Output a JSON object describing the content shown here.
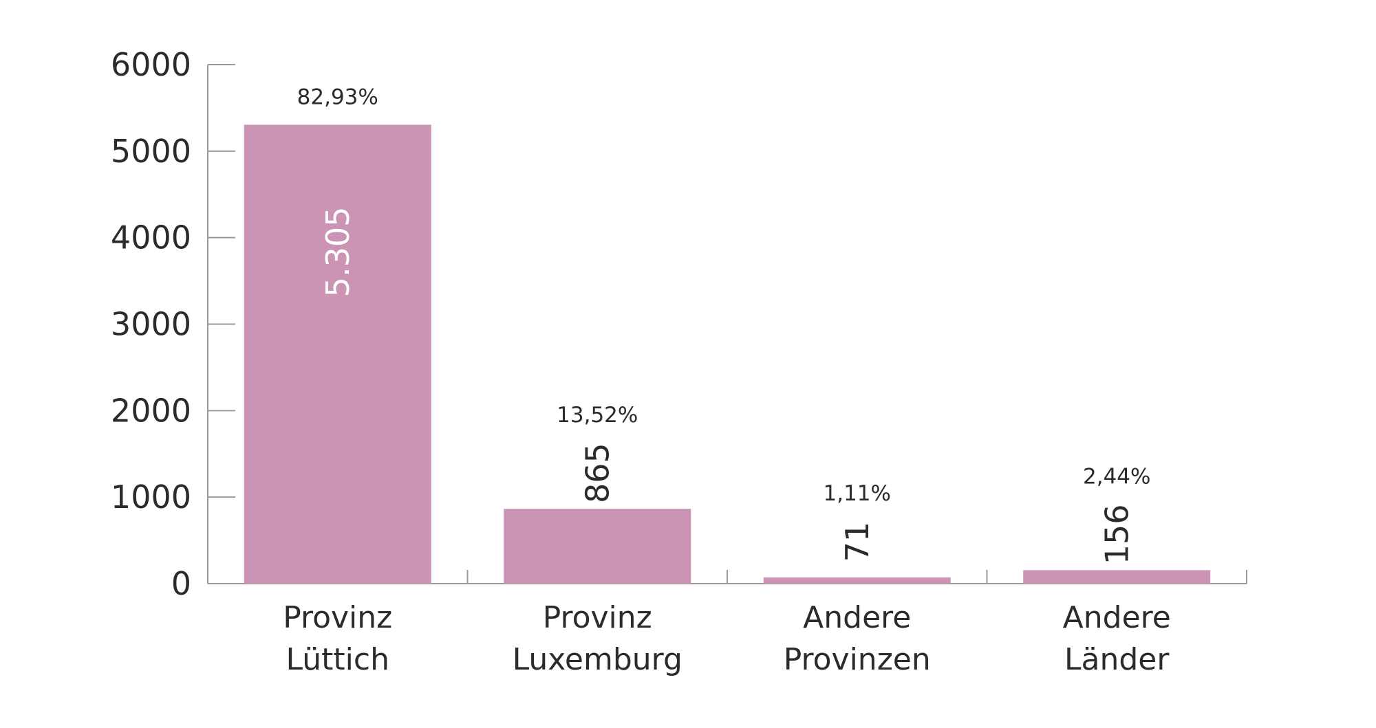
{
  "chart_data": {
    "type": "bar",
    "title": "",
    "xlabel": "",
    "ylabel": "",
    "ylim": [
      0,
      6000
    ],
    "yticks": [
      0,
      1000,
      2000,
      3000,
      4000,
      5000,
      6000
    ],
    "grid": false,
    "categories": [
      [
        "Provinz",
        "Lüttich"
      ],
      [
        "Provinz",
        "Luxemburg"
      ],
      [
        "Andere",
        "Provinzen"
      ],
      [
        "Andere",
        "Länder"
      ]
    ],
    "values": [
      5305,
      865,
      71,
      156
    ],
    "value_labels": [
      "5.305",
      "865",
      "71",
      "156"
    ],
    "percent_labels": [
      "82,93%",
      "13,52%",
      "1,11%",
      "2,44%"
    ],
    "colors": {
      "bar": "#cc94b4",
      "value_label_inside": "#ffffff",
      "value_label_outside": "#2b2b2b"
    }
  }
}
